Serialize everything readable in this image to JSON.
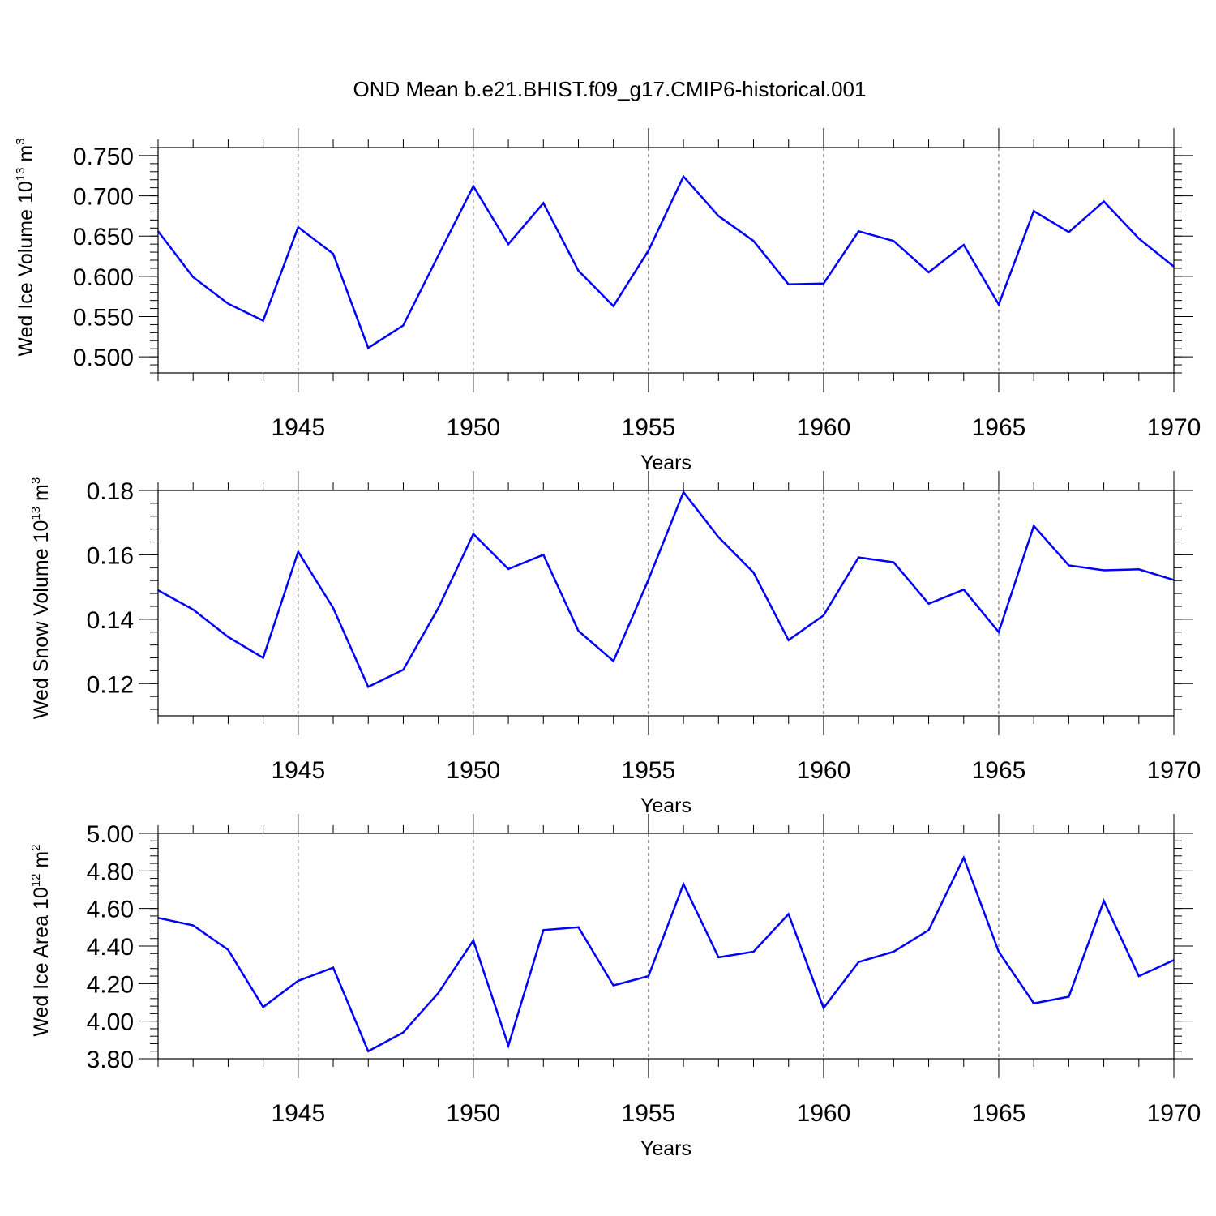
{
  "chart_data": [
    {
      "type": "line",
      "title": "OND Mean b.e21.BHIST.f09_g17.CMIP6-historical.001",
      "xlabel": "Years",
      "ylabel": {
        "text": "Wed Ice Volume 10",
        "exp": "13",
        "unit": " m",
        "unit_exp": "3"
      },
      "xlim": [
        1941,
        1970
      ],
      "ylim": [
        0.48,
        0.76
      ],
      "yticks": [
        0.5,
        0.55,
        0.6,
        0.65,
        0.7,
        0.75
      ],
      "ytick_labels": [
        "0.500",
        "0.550",
        "0.600",
        "0.650",
        "0.700",
        "0.750"
      ],
      "xticks": [
        1945,
        1950,
        1955,
        1960,
        1965,
        1970
      ],
      "xtick_labels": [
        "1945",
        "1950",
        "1955",
        "1960",
        "1965",
        "1970"
      ],
      "grid": "vertical dashed at major x ticks",
      "color": "#0000ff",
      "x": [
        1941,
        1942,
        1943,
        1944,
        1945,
        1946,
        1947,
        1948,
        1949,
        1950,
        1951,
        1952,
        1953,
        1954,
        1955,
        1956,
        1957,
        1958,
        1959,
        1960,
        1961,
        1962,
        1963,
        1964,
        1965,
        1966,
        1967,
        1968,
        1969,
        1970
      ],
      "values": [
        0.656,
        0.599,
        0.566,
        0.545,
        0.661,
        0.628,
        0.511,
        0.539,
        0.626,
        0.712,
        0.64,
        0.691,
        0.607,
        0.563,
        0.632,
        0.724,
        0.675,
        0.644,
        0.59,
        0.591,
        0.656,
        0.644,
        0.605,
        0.639,
        0.565,
        0.681,
        0.655,
        0.693,
        0.647,
        0.612
      ]
    },
    {
      "type": "line",
      "xlabel": "Years",
      "ylabel": {
        "text": "Wed Snow Volume 10",
        "exp": "13",
        "unit": " m",
        "unit_exp": "3"
      },
      "xlim": [
        1941,
        1970
      ],
      "ylim": [
        0.11,
        0.18
      ],
      "yticks": [
        0.12,
        0.14,
        0.16,
        0.18
      ],
      "ytick_labels": [
        "0.12",
        "0.14",
        "0.16",
        "0.18"
      ],
      "xticks": [
        1945,
        1950,
        1955,
        1960,
        1965,
        1970
      ],
      "xtick_labels": [
        "1945",
        "1950",
        "1955",
        "1960",
        "1965",
        "1970"
      ],
      "grid": "vertical dashed at major x ticks",
      "color": "#0000ff",
      "x": [
        1941,
        1942,
        1943,
        1944,
        1945,
        1946,
        1947,
        1948,
        1949,
        1950,
        1951,
        1952,
        1953,
        1954,
        1955,
        1956,
        1957,
        1958,
        1959,
        1960,
        1961,
        1962,
        1963,
        1964,
        1965,
        1966,
        1967,
        1968,
        1969,
        1970
      ],
      "values": [
        0.149,
        0.143,
        0.1345,
        0.128,
        0.161,
        0.1435,
        0.119,
        0.1243,
        0.1435,
        0.1665,
        0.1556,
        0.16,
        0.1364,
        0.127,
        0.1523,
        0.1795,
        0.1655,
        0.1545,
        0.1335,
        0.1412,
        0.1592,
        0.1577,
        0.1448,
        0.1492,
        0.136,
        0.169,
        0.1567,
        0.1552,
        0.1555,
        0.1522
      ]
    },
    {
      "type": "line",
      "xlabel": "Years",
      "ylabel": {
        "text": "Wed Ice Area 10",
        "exp": "12",
        "unit": " m",
        "unit_exp": "2"
      },
      "xlim": [
        1941,
        1970
      ],
      "ylim": [
        3.8,
        5.0
      ],
      "yticks": [
        3.8,
        4.0,
        4.2,
        4.4,
        4.6,
        4.8,
        5.0
      ],
      "ytick_labels": [
        "3.80",
        "4.00",
        "4.20",
        "4.40",
        "4.60",
        "4.80",
        "5.00"
      ],
      "xticks": [
        1945,
        1950,
        1955,
        1960,
        1965,
        1970
      ],
      "xtick_labels": [
        "1945",
        "1950",
        "1955",
        "1960",
        "1965",
        "1970"
      ],
      "grid": "vertical dashed at major x ticks",
      "color": "#0000ff",
      "x": [
        1941,
        1942,
        1943,
        1944,
        1945,
        1946,
        1947,
        1948,
        1949,
        1950,
        1951,
        1952,
        1953,
        1954,
        1955,
        1956,
        1957,
        1958,
        1959,
        1960,
        1961,
        1962,
        1963,
        1964,
        1965,
        1966,
        1967,
        1968,
        1969,
        1970
      ],
      "values": [
        4.55,
        4.51,
        4.38,
        4.075,
        4.215,
        4.285,
        3.84,
        3.94,
        4.15,
        4.43,
        3.87,
        4.485,
        4.5,
        4.19,
        4.24,
        4.73,
        4.34,
        4.37,
        4.57,
        4.07,
        4.315,
        4.37,
        4.485,
        4.87,
        4.37,
        4.095,
        4.13,
        4.64,
        4.24,
        4.325
      ]
    }
  ]
}
